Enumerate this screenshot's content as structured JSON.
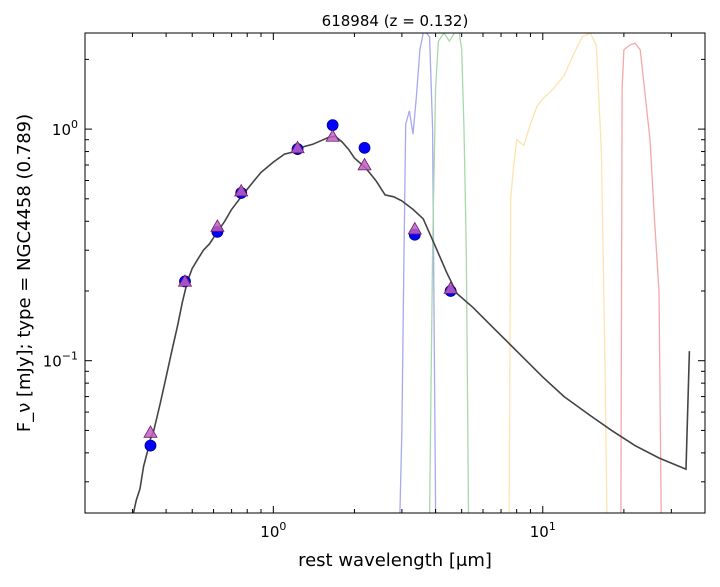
{
  "chart_data": {
    "type": "line",
    "title": "618984 (z = 0.132)",
    "xlabel": "rest wavelength [μm]",
    "ylabel": "F_ν [mJy];  type = NGC4458 (0.789)",
    "x_scale": "log",
    "y_scale": "log",
    "xlim": [
      0.2,
      40
    ],
    "ylim": [
      0.022,
      2.6
    ],
    "x_ticks": [
      {
        "value": 1,
        "label": "10^0"
      },
      {
        "value": 10,
        "label": "10^1"
      }
    ],
    "y_ticks": [
      {
        "value": 0.1,
        "label": "10^-1"
      },
      {
        "value": 1,
        "label": "10^0"
      }
    ],
    "grid": false,
    "series": [
      {
        "kind": "template_sed",
        "color": "#444444",
        "points": [
          [
            0.3,
            0.021
          ],
          [
            0.31,
            0.025
          ],
          [
            0.32,
            0.028
          ],
          [
            0.33,
            0.035
          ],
          [
            0.34,
            0.04
          ],
          [
            0.35,
            0.046
          ],
          [
            0.36,
            0.05
          ],
          [
            0.38,
            0.065
          ],
          [
            0.4,
            0.085
          ],
          [
            0.42,
            0.11
          ],
          [
            0.44,
            0.14
          ],
          [
            0.46,
            0.18
          ],
          [
            0.48,
            0.22
          ],
          [
            0.5,
            0.25
          ],
          [
            0.52,
            0.27
          ],
          [
            0.55,
            0.3
          ],
          [
            0.58,
            0.32
          ],
          [
            0.6,
            0.34
          ],
          [
            0.63,
            0.37
          ],
          [
            0.66,
            0.4
          ],
          [
            0.7,
            0.45
          ],
          [
            0.75,
            0.5
          ],
          [
            0.8,
            0.55
          ],
          [
            0.85,
            0.6
          ],
          [
            0.9,
            0.65
          ],
          [
            1.0,
            0.72
          ],
          [
            1.1,
            0.78
          ],
          [
            1.2,
            0.8
          ],
          [
            1.3,
            0.84
          ],
          [
            1.4,
            0.86
          ],
          [
            1.5,
            0.89
          ],
          [
            1.6,
            0.92
          ],
          [
            1.7,
            0.93
          ],
          [
            1.8,
            0.88
          ],
          [
            1.9,
            0.82
          ],
          [
            2.0,
            0.75
          ],
          [
            2.2,
            0.68
          ],
          [
            2.4,
            0.6
          ],
          [
            2.6,
            0.52
          ],
          [
            2.8,
            0.51
          ],
          [
            3.0,
            0.49
          ],
          [
            3.3,
            0.45
          ],
          [
            3.6,
            0.41
          ],
          [
            4.0,
            0.31
          ],
          [
            4.4,
            0.24
          ],
          [
            4.8,
            0.195
          ],
          [
            5.5,
            0.17
          ],
          [
            6.5,
            0.14
          ],
          [
            8.0,
            0.11
          ],
          [
            10.0,
            0.085
          ],
          [
            12.0,
            0.07
          ],
          [
            15.0,
            0.058
          ],
          [
            18.0,
            0.05
          ],
          [
            22.0,
            0.043
          ],
          [
            27.0,
            0.038
          ],
          [
            32.0,
            0.035
          ],
          [
            34.0,
            0.034
          ],
          [
            35.0,
            0.11
          ]
        ]
      },
      {
        "kind": "filter_ch1",
        "color": "#a8a8ee",
        "points": [
          [
            2.95,
            0.022
          ],
          [
            3.0,
            0.05
          ],
          [
            3.05,
            0.25
          ],
          [
            3.1,
            1.05
          ],
          [
            3.2,
            1.2
          ],
          [
            3.3,
            0.95
          ],
          [
            3.4,
            1.4
          ],
          [
            3.5,
            2.2
          ],
          [
            3.6,
            2.6
          ],
          [
            3.7,
            2.6
          ],
          [
            3.8,
            2.5
          ],
          [
            3.9,
            1.0
          ],
          [
            4.0,
            0.022
          ]
        ]
      },
      {
        "kind": "filter_ch2",
        "color": "#a8d8a8",
        "points": [
          [
            3.8,
            0.022
          ],
          [
            3.9,
            0.3
          ],
          [
            4.0,
            1.5
          ],
          [
            4.1,
            2.4
          ],
          [
            4.3,
            2.6
          ],
          [
            4.5,
            2.4
          ],
          [
            4.7,
            2.6
          ],
          [
            4.9,
            2.6
          ],
          [
            5.0,
            2.2
          ],
          [
            5.1,
            1.0
          ],
          [
            5.2,
            0.3
          ],
          [
            5.3,
            0.022
          ]
        ]
      },
      {
        "kind": "filter_mips24_like",
        "color": "#fde3b0",
        "points": [
          [
            7.5,
            0.022
          ],
          [
            7.6,
            0.5
          ],
          [
            7.8,
            0.7
          ],
          [
            8.0,
            0.9
          ],
          [
            8.5,
            0.85
          ],
          [
            9.0,
            1.05
          ],
          [
            9.5,
            1.25
          ],
          [
            10.0,
            1.35
          ],
          [
            11.0,
            1.5
          ],
          [
            12.0,
            1.7
          ],
          [
            13.0,
            2.1
          ],
          [
            14.0,
            2.5
          ],
          [
            15.0,
            2.6
          ],
          [
            15.8,
            2.3
          ],
          [
            16.5,
            0.8
          ],
          [
            17.0,
            0.1
          ],
          [
            17.3,
            0.022
          ]
        ]
      },
      {
        "kind": "filter_red",
        "color": "#f4a8a8",
        "points": [
          [
            19.5,
            0.022
          ],
          [
            19.7,
            1.5
          ],
          [
            20.0,
            2.2
          ],
          [
            21.0,
            2.3
          ],
          [
            22.0,
            2.35
          ],
          [
            23.0,
            2.2
          ],
          [
            24.0,
            1.4
          ],
          [
            25.0,
            0.9
          ],
          [
            26.0,
            0.4
          ],
          [
            27.0,
            0.2
          ],
          [
            27.5,
            0.022
          ]
        ]
      }
    ],
    "observed_points": [
      {
        "x": 0.35,
        "y": 0.043
      },
      {
        "x": 0.47,
        "y": 0.22
      },
      {
        "x": 0.62,
        "y": 0.36
      },
      {
        "x": 0.76,
        "y": 0.53
      },
      {
        "x": 1.23,
        "y": 0.82
      },
      {
        "x": 1.66,
        "y": 1.04
      },
      {
        "x": 2.18,
        "y": 0.83
      },
      {
        "x": 3.35,
        "y": 0.35
      },
      {
        "x": 4.55,
        "y": 0.2
      }
    ],
    "model_points": [
      {
        "x": 0.35,
        "y": 0.049
      },
      {
        "x": 0.47,
        "y": 0.22
      },
      {
        "x": 0.62,
        "y": 0.38
      },
      {
        "x": 0.76,
        "y": 0.54
      },
      {
        "x": 1.23,
        "y": 0.83
      },
      {
        "x": 1.66,
        "y": 0.93
      },
      {
        "x": 2.18,
        "y": 0.7
      },
      {
        "x": 3.35,
        "y": 0.37
      },
      {
        "x": 4.55,
        "y": 0.205
      }
    ],
    "colors": {
      "observed": "#0000ff",
      "model": "#c060c0",
      "axis": "#000000"
    }
  }
}
